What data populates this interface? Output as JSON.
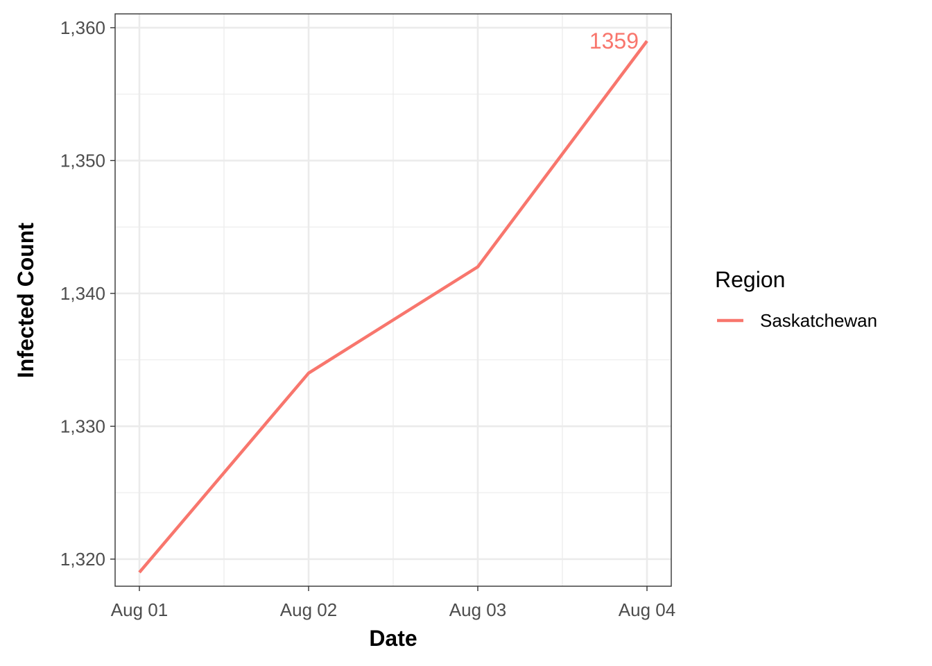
{
  "chart_data": {
    "type": "line",
    "x": [
      "Aug 01",
      "Aug 02",
      "Aug 03",
      "Aug 04"
    ],
    "series": [
      {
        "name": "Saskatchewan",
        "values": [
          1319,
          1334,
          1342,
          1359
        ],
        "color": "#F8766D"
      }
    ],
    "xlabel": "Date",
    "ylabel": "Infected Count",
    "ylim": [
      1317.96,
      1361.04
    ],
    "yticks": [
      1320,
      1330,
      1340,
      1350,
      1360
    ],
    "ytick_labels": [
      "1,320",
      "1,330",
      "1,340",
      "1,350",
      "1,360"
    ],
    "xtick_labels": [
      "Aug 01",
      "Aug 02",
      "Aug 03",
      "Aug 04"
    ],
    "annotation": {
      "text": "1359",
      "at": "Aug 04",
      "value": 1359
    },
    "legend": {
      "title": "Region",
      "position": "right"
    },
    "grid": true,
    "theme": "bw"
  }
}
